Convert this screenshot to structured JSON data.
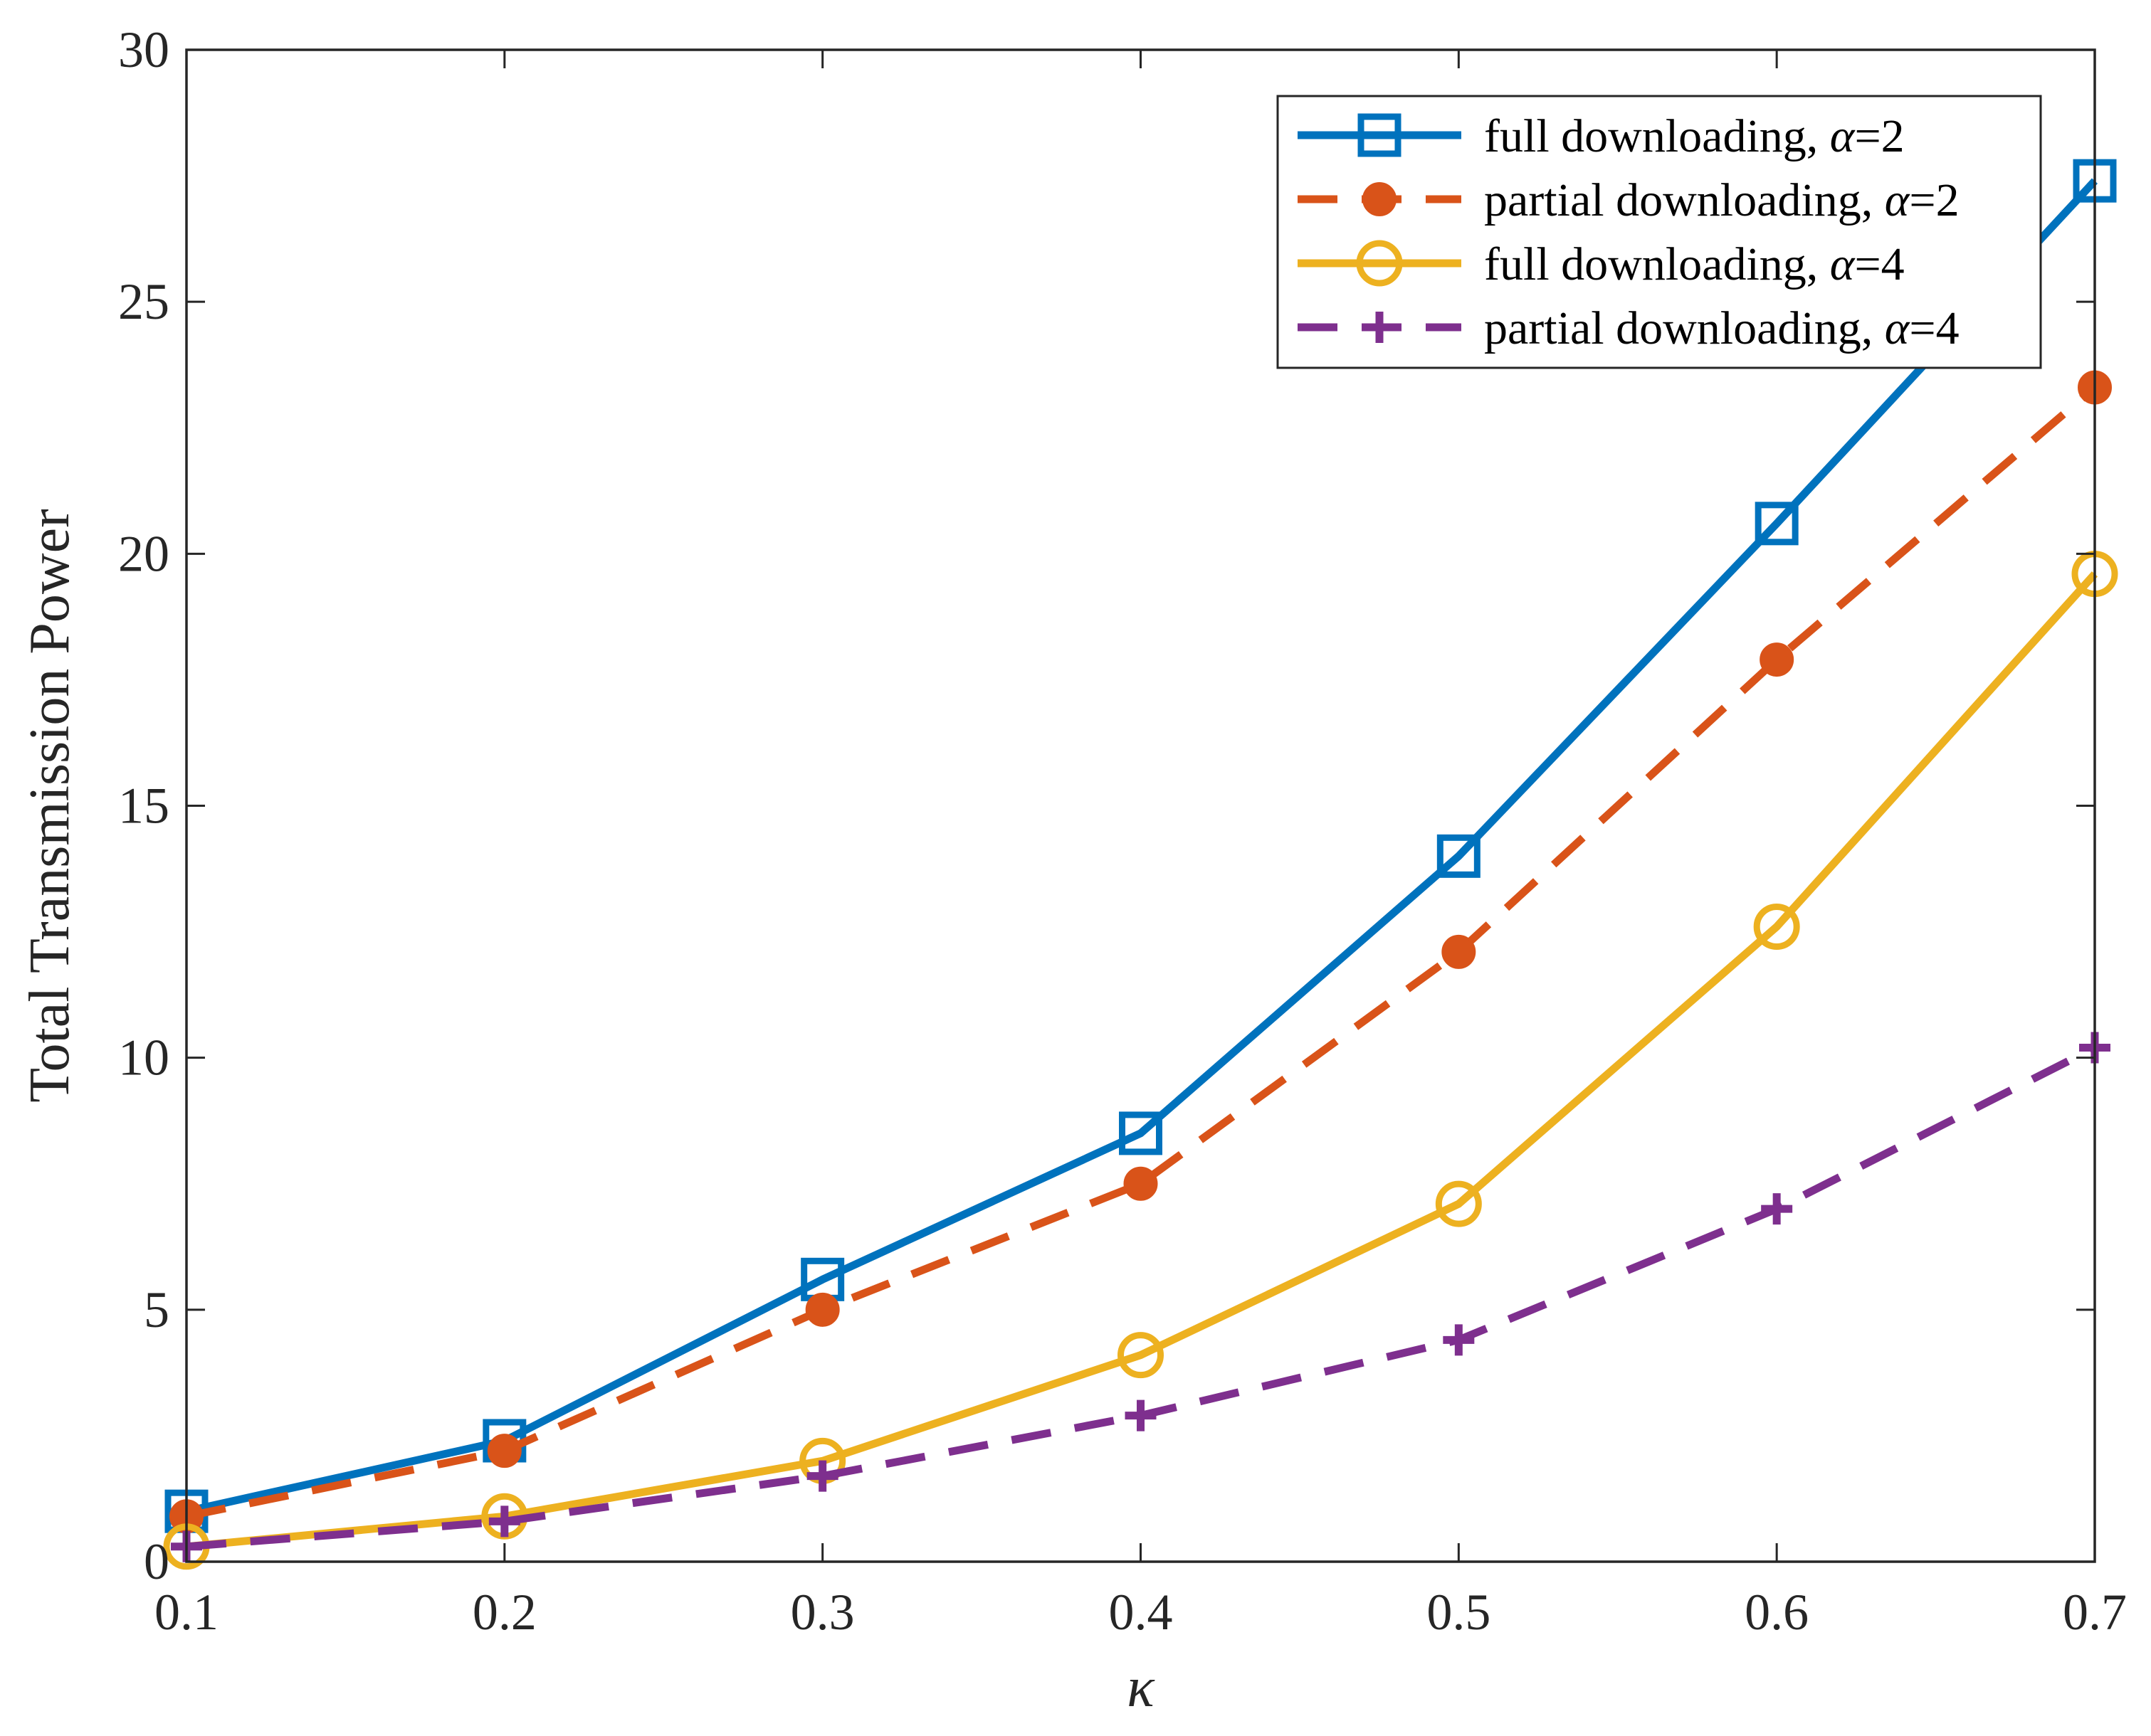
{
  "chart_data": {
    "type": "line",
    "title": "",
    "xlabel": "κ",
    "ylabel": "Total Transmission Power",
    "xlim": [
      0.1,
      0.7
    ],
    "ylim": [
      0,
      30
    ],
    "x": [
      0.1,
      0.2,
      0.3,
      0.4,
      0.5,
      0.6,
      0.7
    ],
    "xticks": [
      "0.1",
      "0.2",
      "0.3",
      "0.4",
      "0.5",
      "0.6",
      "0.7"
    ],
    "yticks": [
      "0",
      "5",
      "10",
      "15",
      "20",
      "25",
      "30"
    ],
    "legend_position": "top-right",
    "grid": false,
    "series": [
      {
        "name": "full downloading, α=2",
        "label_main": "full downloading, ",
        "label_symbol": "α",
        "label_tail": "=2",
        "color": "#0072bd",
        "dash": "solid",
        "marker": "square",
        "values": [
          1.0,
          2.4,
          5.6,
          8.5,
          14.0,
          20.6,
          27.4
        ]
      },
      {
        "name": "partial downloading, α=2",
        "label_main": "partial downloading, ",
        "label_symbol": "α",
        "label_tail": "=2",
        "color": "#d95319",
        "dash": "dashed",
        "marker": "filled-circle",
        "values": [
          0.9,
          2.2,
          5.0,
          7.5,
          12.1,
          17.9,
          23.3
        ]
      },
      {
        "name": "full downloading, α=4",
        "label_main": "full downloading, ",
        "label_symbol": "α",
        "label_tail": "=4",
        "color": "#edb120",
        "dash": "solid",
        "marker": "circle",
        "values": [
          0.3,
          0.9,
          2.0,
          4.1,
          7.1,
          12.6,
          19.6
        ]
      },
      {
        "name": "partial downloading, α=4",
        "label_main": "partial downloading, ",
        "label_symbol": "α",
        "label_tail": "=4",
        "color": "#7e2f8e",
        "dash": "dashed",
        "marker": "plus",
        "values": [
          0.3,
          0.8,
          1.7,
          2.9,
          4.4,
          7.0,
          10.2
        ]
      }
    ]
  }
}
